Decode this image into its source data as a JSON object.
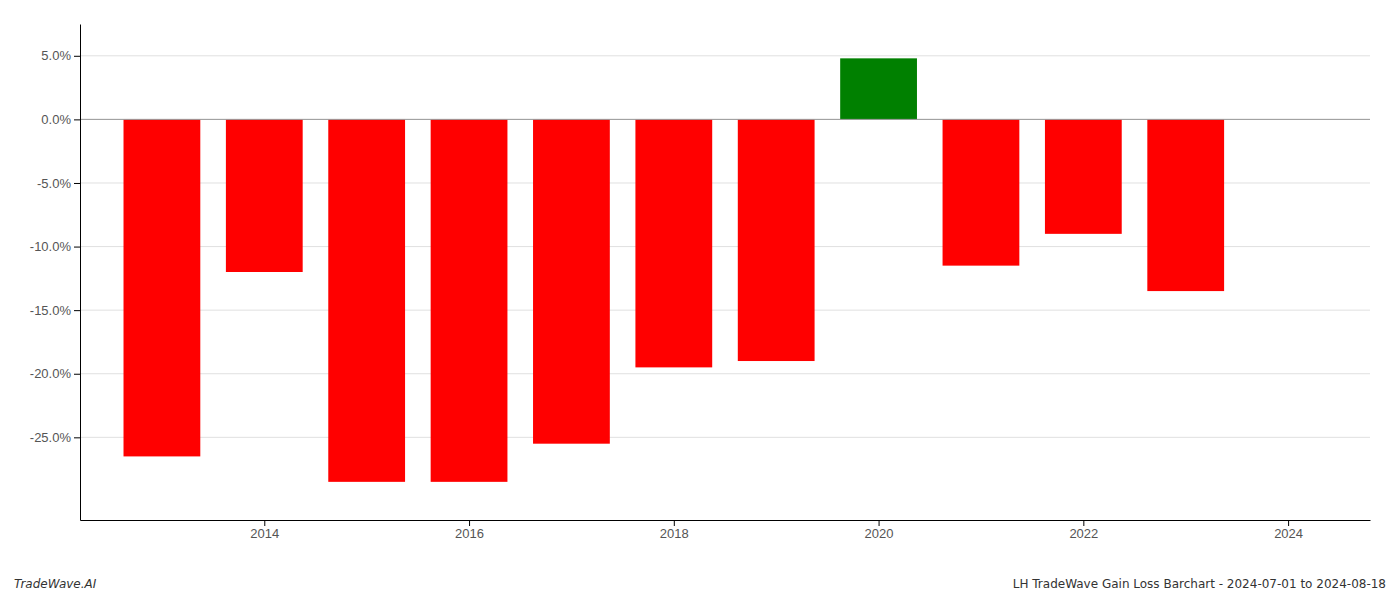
{
  "chart_data": {
    "type": "bar",
    "x": [
      2013,
      2014,
      2015,
      2016,
      2017,
      2018,
      2019,
      2020,
      2021,
      2022,
      2023
    ],
    "values": [
      -0.265,
      -0.12,
      -0.285,
      -0.285,
      -0.255,
      -0.195,
      -0.19,
      0.048,
      -0.115,
      -0.09,
      -0.135
    ],
    "colors": [
      "#ff0000",
      "#ff0000",
      "#ff0000",
      "#ff0000",
      "#ff0000",
      "#ff0000",
      "#ff0000",
      "#008000",
      "#ff0000",
      "#ff0000",
      "#ff0000"
    ],
    "xlim": [
      2012.2,
      2024.8
    ],
    "xticks": [
      2014,
      2016,
      2018,
      2020,
      2022,
      2024
    ],
    "ylim": [
      -0.315,
      0.075
    ],
    "yticks": [
      {
        "value": -0.25,
        "label": "-25.0%"
      },
      {
        "value": -0.2,
        "label": "-20.0%"
      },
      {
        "value": -0.15,
        "label": "-15.0%"
      },
      {
        "value": -0.1,
        "label": "-10.0%"
      },
      {
        "value": -0.05,
        "label": "-5.0%"
      },
      {
        "value": 0.0,
        "label": "0.0%"
      },
      {
        "value": 0.05,
        "label": "5.0%"
      }
    ],
    "grid": true,
    "annotations": [
      "TradeWave.AI",
      "LH TradeWave Gain Loss Barchart - 2024-07-01 to 2024-08-18"
    ]
  }
}
